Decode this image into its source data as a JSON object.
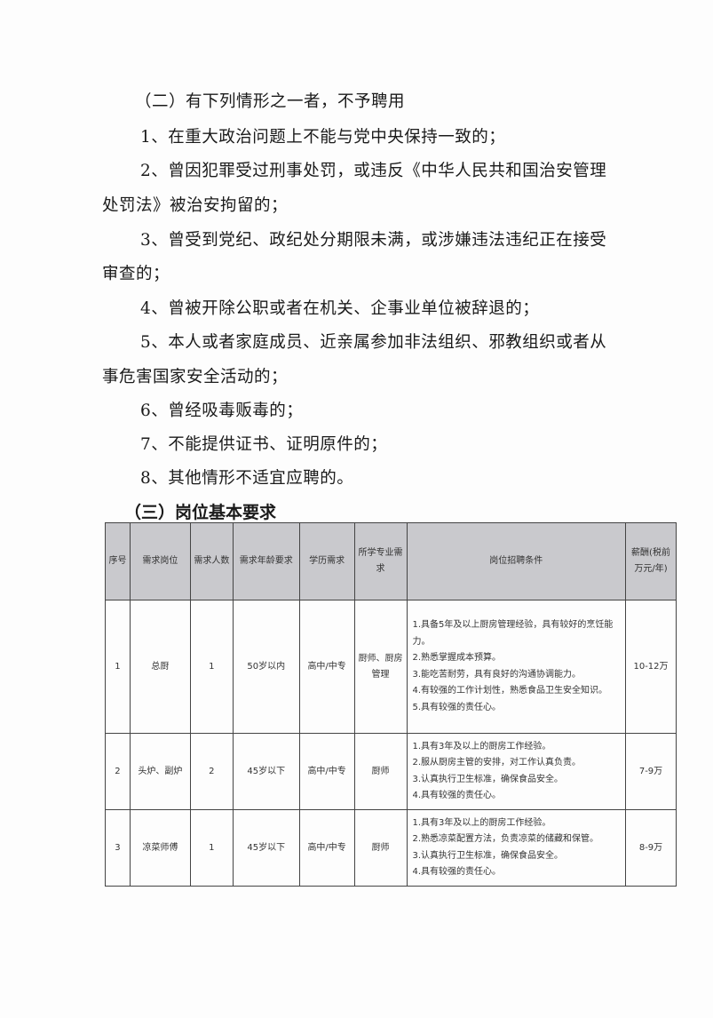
{
  "section2": {
    "heading": "（二）有下列情形之一者，不予聘用",
    "lines": [
      "1、在重大政治问题上不能与党中央保持一致的；",
      "2、曾因犯罪受过刑事处罚，或违反《中华人民共和国治安管理",
      "处罚法》被治安拘留的；",
      "3、曾受到党纪、政纪处分期限未满，或涉嫌违法违纪正在接受",
      "审查的；",
      "4、曾被开除公职或者在机关、企事业单位被辞退的；",
      "5、本人或者家庭成员、近亲属参加非法组织、邪教组织或者从",
      "事危害国家安全活动的；",
      "6、曾经吸毒贩毒的；",
      "7、不能提供证书、证明原件的；",
      "8、其他情形不适宜应聘的。"
    ]
  },
  "section3": {
    "heading": "（三）岗位基本要求",
    "columns": [
      "序号",
      "需求岗位",
      "需求人数",
      "需求年龄要求",
      "学历需求",
      "所学专业需求",
      "岗位招聘条件",
      "薪酬(税前万元/年)"
    ],
    "rows": [
      {
        "no": "1",
        "position": "总厨",
        "count": "1",
        "age": "50岁以内",
        "edu": "高中/中专",
        "major": "厨师、厨房管理",
        "reqs": [
          "1.具备5年及以上厨房管理经验，具有较好的烹饪能力。",
          "2.熟悉掌握成本预算。",
          "3.能吃苦耐劳，具有良好的沟通协调能力。",
          "4.有较强的工作计划性，熟悉食品卫生安全知识。",
          "5.具有较强的责任心。"
        ],
        "salary": "10-12万"
      },
      {
        "no": "2",
        "position": "头炉、副炉",
        "count": "2",
        "age": "45岁以下",
        "edu": "高中/中专",
        "major": "厨师",
        "reqs": [
          "1.具有3年及以上的厨房工作经验。",
          "2.服从厨房主管的安排，对工作认真负责。",
          "3.认真执行卫生标准，确保食品安全。",
          "4.具有较强的责任心。"
        ],
        "salary": "7-9万"
      },
      {
        "no": "3",
        "position": "凉菜师傅",
        "count": "1",
        "age": "45岁以下",
        "edu": "高中/中专",
        "major": "厨师",
        "reqs": [
          "1.具有3年及以上的厨房工作经验。",
          "2.熟悉凉菜配置方法，负责凉菜的储藏和保管。",
          "3.认真执行卫生标准，确保食品安全。",
          "4.具有较强的责任心。"
        ],
        "salary": "8-9万"
      }
    ]
  }
}
